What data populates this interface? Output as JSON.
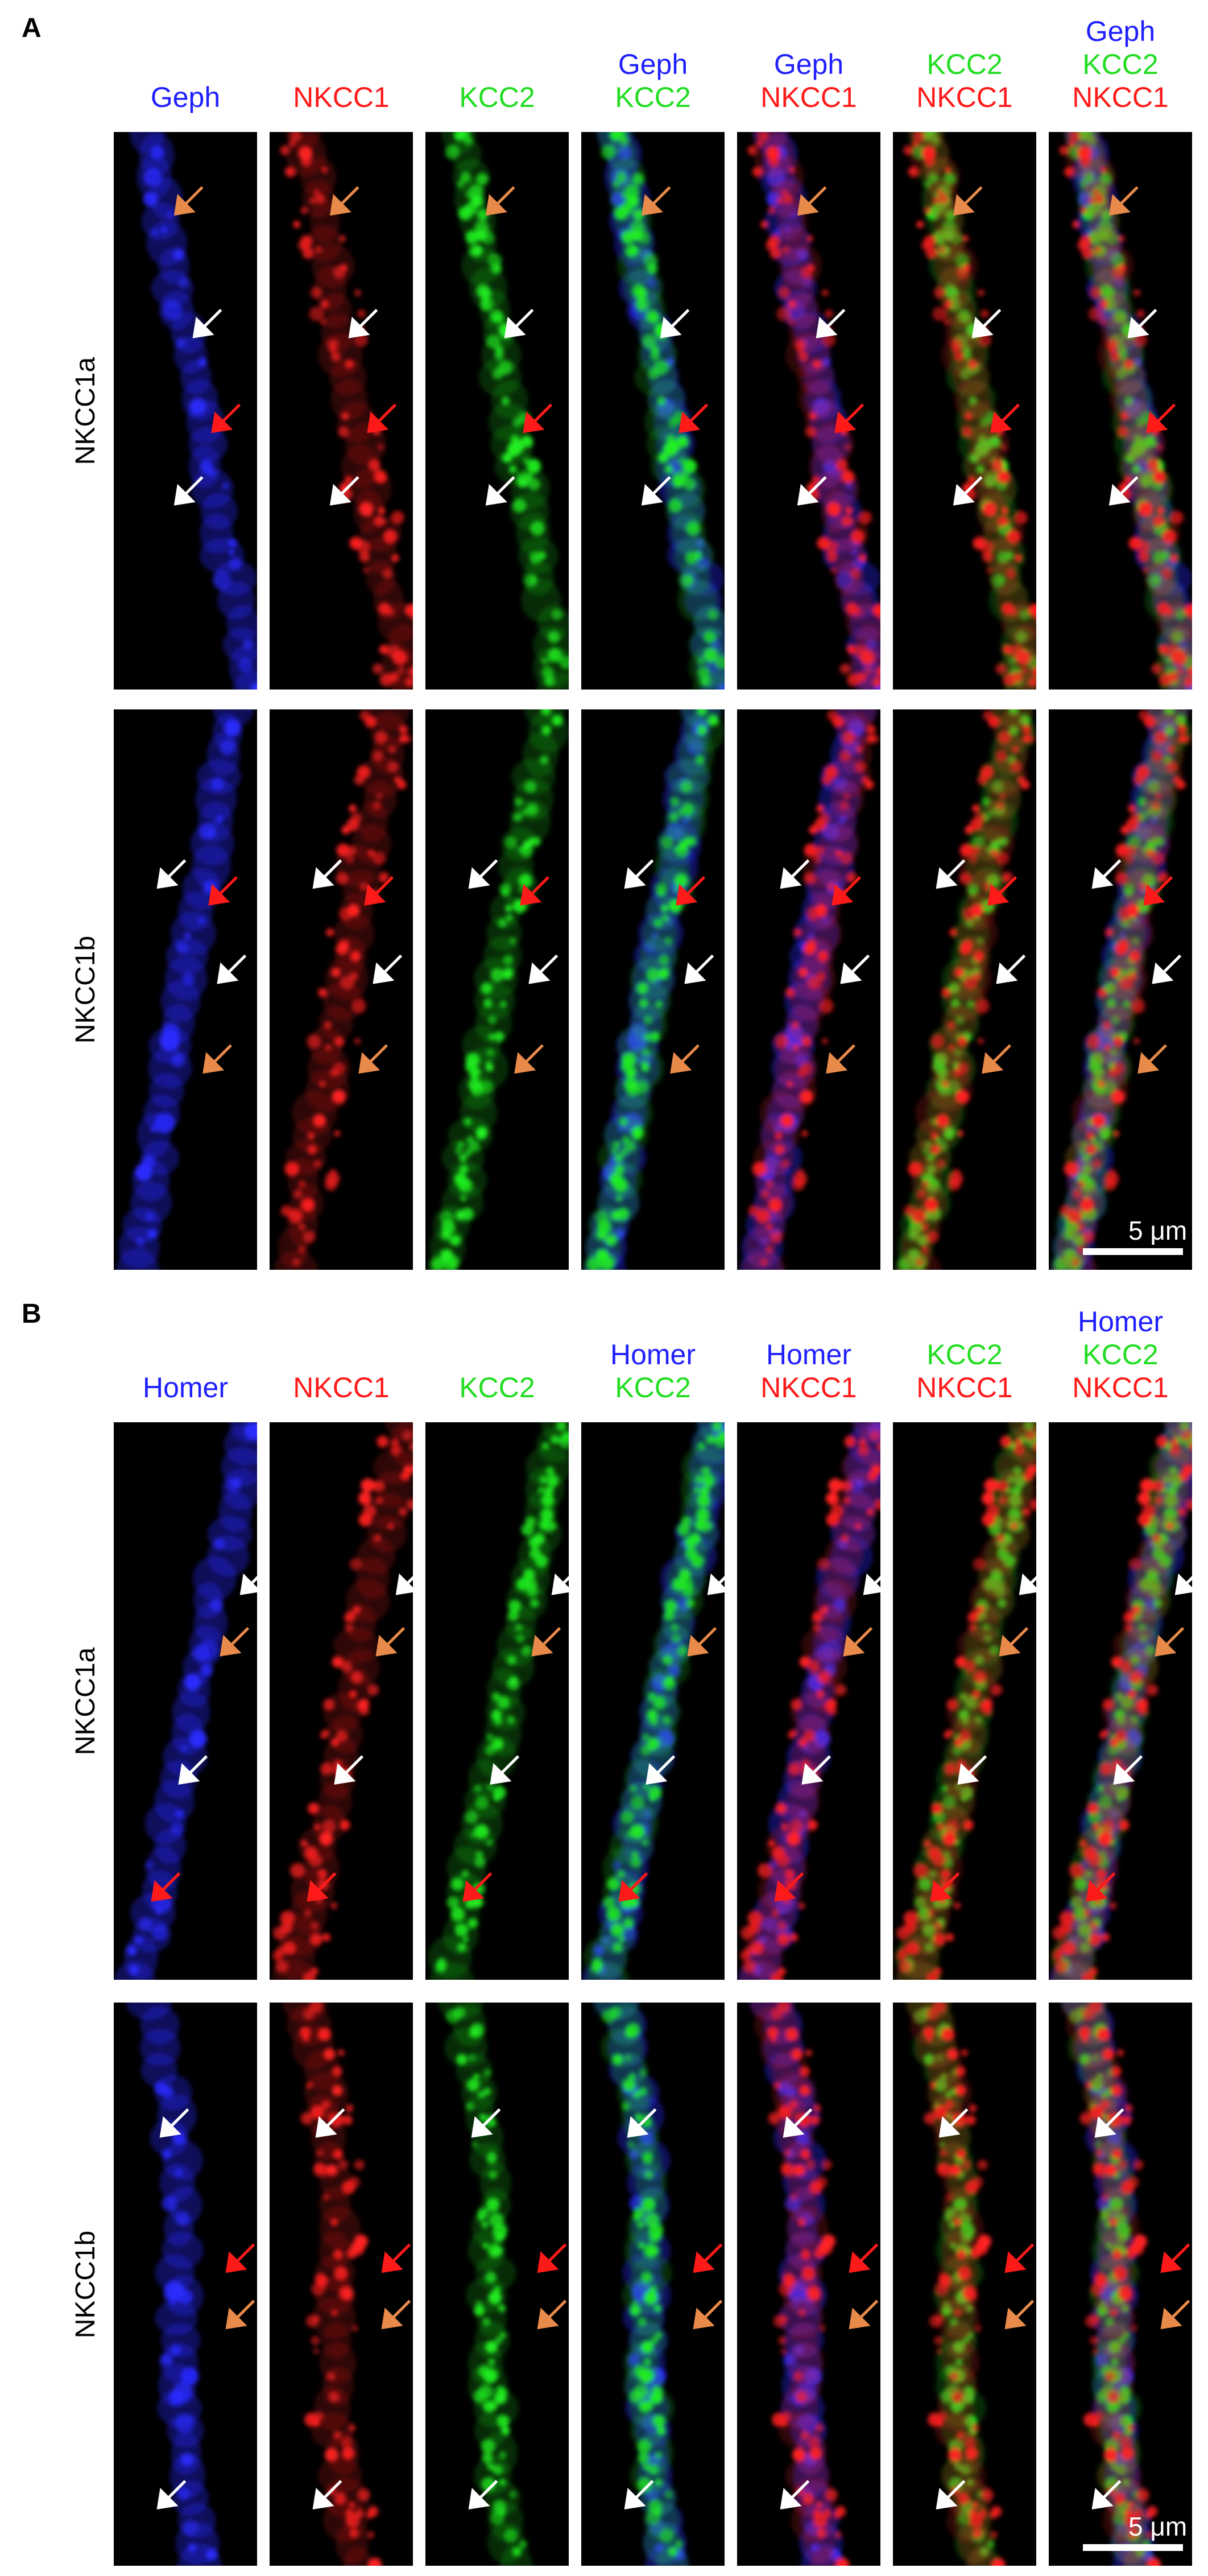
{
  "panelA": {
    "letter": "A",
    "headers": [
      {
        "lines": [
          {
            "text": "Geph",
            "color": "#2020ff"
          }
        ]
      },
      {
        "lines": [
          {
            "text": "NKCC1",
            "color": "#ff1a1a"
          }
        ]
      },
      {
        "lines": [
          {
            "text": "KCC2",
            "color": "#22dd22"
          }
        ]
      },
      {
        "lines": [
          {
            "text": "Geph",
            "color": "#2020ff"
          },
          {
            "text": "KCC2",
            "color": "#22dd22"
          }
        ]
      },
      {
        "lines": [
          {
            "text": "Geph",
            "color": "#2020ff"
          },
          {
            "text": "NKCC1",
            "color": "#ff1a1a"
          }
        ]
      },
      {
        "lines": [
          {
            "text": "KCC2",
            "color": "#22dd22"
          },
          {
            "text": "NKCC1",
            "color": "#ff1a1a"
          }
        ]
      },
      {
        "lines": [
          {
            "text": "Geph",
            "color": "#2020ff"
          },
          {
            "text": "KCC2",
            "color": "#22dd22"
          },
          {
            "text": "NKCC1",
            "color": "#ff1a1a"
          }
        ]
      }
    ],
    "rows": [
      {
        "label": "NKCC1a"
      },
      {
        "label": "NKCC1b"
      }
    ],
    "scalebar": "5 μm"
  },
  "panelB": {
    "letter": "B",
    "headers": [
      {
        "lines": [
          {
            "text": "Homer",
            "color": "#2020ff"
          }
        ]
      },
      {
        "lines": [
          {
            "text": "NKCC1",
            "color": "#ff1a1a"
          }
        ]
      },
      {
        "lines": [
          {
            "text": "KCC2",
            "color": "#22dd22"
          }
        ]
      },
      {
        "lines": [
          {
            "text": "Homer",
            "color": "#2020ff"
          },
          {
            "text": "KCC2",
            "color": "#22dd22"
          }
        ]
      },
      {
        "lines": [
          {
            "text": "Homer",
            "color": "#2020ff"
          },
          {
            "text": "NKCC1",
            "color": "#ff1a1a"
          }
        ]
      },
      {
        "lines": [
          {
            "text": "KCC2",
            "color": "#22dd22"
          },
          {
            "text": "NKCC1",
            "color": "#ff1a1a"
          }
        ]
      },
      {
        "lines": [
          {
            "text": "Homer",
            "color": "#2020ff"
          },
          {
            "text": "KCC2",
            "color": "#22dd22"
          },
          {
            "text": "NKCC1",
            "color": "#ff1a1a"
          }
        ]
      }
    ],
    "rows": [
      {
        "label": "NKCC1a"
      },
      {
        "label": "NKCC1b"
      }
    ],
    "scalebar": "5 μm"
  },
  "arrow_colors": {
    "white": "#ffffff",
    "red": "#ff1a1a",
    "orange": "#e88a4a"
  },
  "channel_colors": {
    "blue": "#2a2aff",
    "red": "#ff2020",
    "green": "#20ee20"
  }
}
